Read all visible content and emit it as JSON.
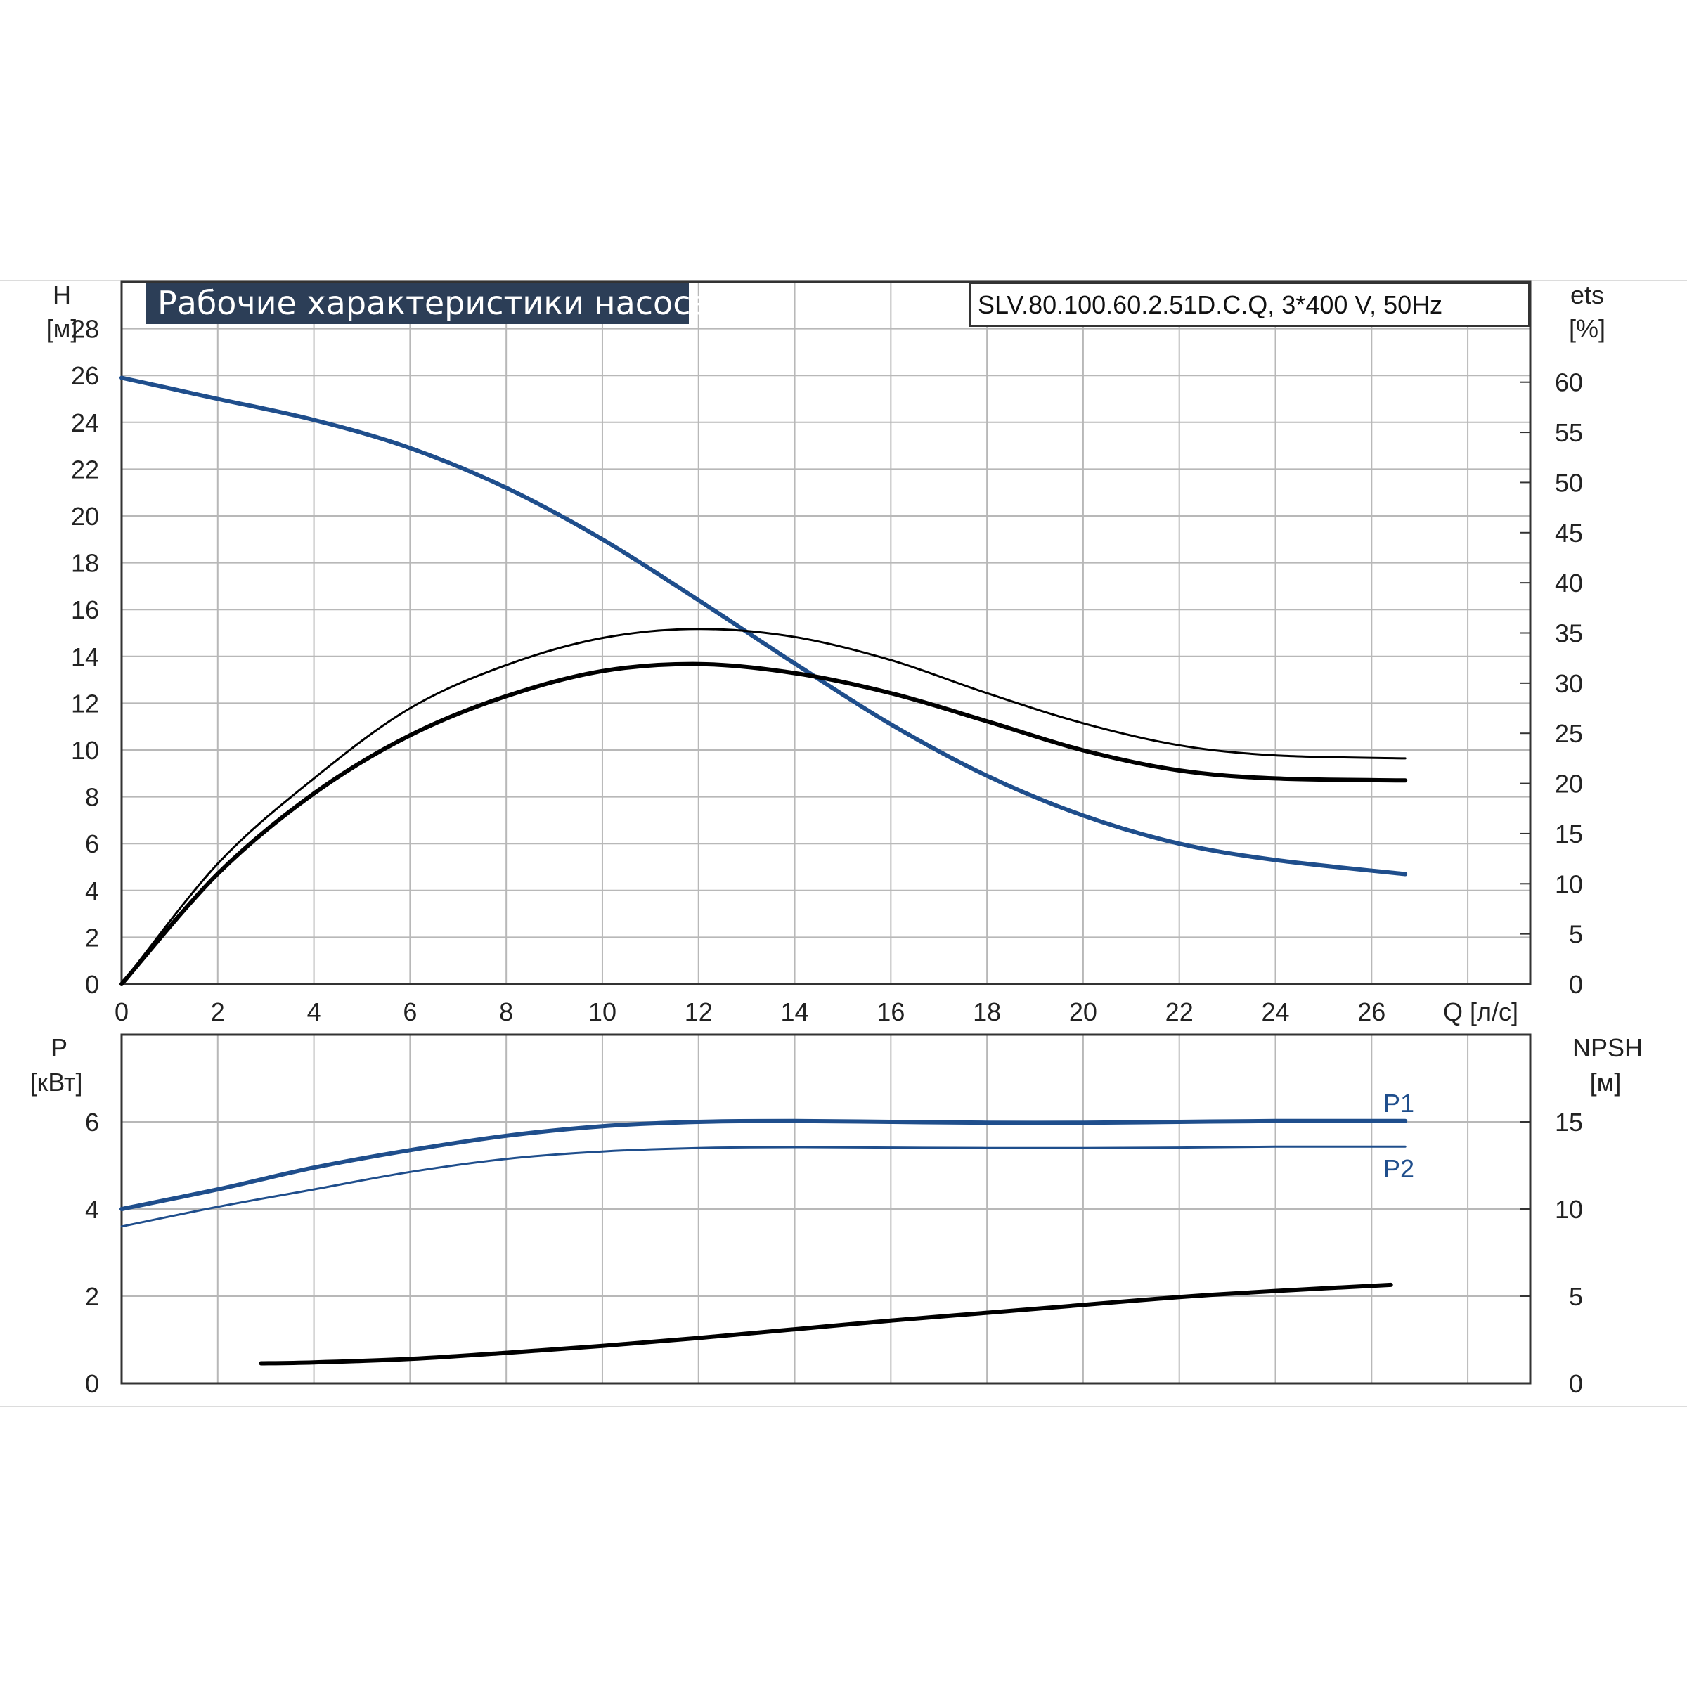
{
  "chart_data": [
    {
      "type": "line",
      "title": "Рабочие характеристики насоса",
      "model": "SLV.80.100.60.2.51D.C.Q, 3*400 V, 50Hz",
      "xlabel": "Q [л/с]",
      "ylabel": "H",
      "ylabel_unit": "[м]",
      "y2label": "ets",
      "y2label_unit": "[%]",
      "xlim": [
        0,
        29.3
      ],
      "ylim": [
        0,
        30
      ],
      "y2lim": [
        0,
        70
      ],
      "grid": true,
      "x_ticks": [
        "0",
        "2",
        "4",
        "6",
        "8",
        "10",
        "12",
        "14",
        "16",
        "18",
        "20",
        "22",
        "24",
        "26"
      ],
      "y_ticks": [
        "0",
        "2",
        "4",
        "6",
        "8",
        "10",
        "12",
        "14",
        "16",
        "18",
        "20",
        "22",
        "24",
        "26",
        "28"
      ],
      "y2_ticks": [
        "0",
        "5",
        "10",
        "15",
        "20",
        "25",
        "30",
        "35",
        "40",
        "45",
        "50",
        "55",
        "60"
      ],
      "series": [
        {
          "key": "head",
          "axis": "left",
          "color": "#1f4e8c",
          "x": [
            0,
            2,
            4,
            6,
            8,
            10,
            12,
            14,
            16,
            18,
            20,
            22,
            24,
            26.7
          ],
          "y": [
            25.9,
            25.0,
            24.1,
            22.9,
            21.2,
            19.0,
            16.4,
            13.7,
            11.1,
            8.9,
            7.2,
            6.0,
            5.3,
            4.7
          ]
        },
        {
          "key": "efficiency-upper",
          "axis": "right",
          "color": "#000000",
          "x": [
            0,
            2,
            4,
            6,
            8,
            10,
            12,
            14,
            16,
            18,
            20,
            22,
            24,
            26.7
          ],
          "y": [
            0,
            12.0,
            20.5,
            27.5,
            31.8,
            34.5,
            35.4,
            34.6,
            32.3,
            29.0,
            26.0,
            23.8,
            22.8,
            22.5
          ]
        },
        {
          "key": "efficiency-lower",
          "axis": "right",
          "color": "#000000",
          "x": [
            0,
            2,
            4,
            6,
            8,
            10,
            12,
            14,
            16,
            18,
            20,
            22,
            24,
            26.7
          ],
          "y": [
            0,
            11.0,
            19.0,
            24.8,
            28.7,
            31.2,
            31.9,
            31.0,
            29.0,
            26.2,
            23.3,
            21.3,
            20.5,
            20.3
          ]
        }
      ]
    },
    {
      "type": "line",
      "ylabel": "P",
      "ylabel_unit": "[кВт]",
      "y2label": "NPSH",
      "y2label_unit": "[м]",
      "xlim": [
        0,
        29.3
      ],
      "ylim": [
        0,
        8
      ],
      "y2lim": [
        0,
        20
      ],
      "grid": true,
      "y_ticks": [
        "0",
        "2",
        "4",
        "6"
      ],
      "y2_ticks": [
        "0",
        "5",
        "10",
        "15"
      ],
      "series": [
        {
          "key": "p1",
          "name": "P1",
          "axis": "left",
          "color": "#1f4e8c",
          "x": [
            0,
            2,
            4,
            6,
            8,
            10,
            12,
            14,
            16,
            18,
            20,
            22,
            24,
            26.7
          ],
          "y": [
            4.0,
            4.45,
            4.95,
            5.35,
            5.68,
            5.9,
            6.0,
            6.02,
            6.0,
            5.98,
            5.98,
            6.0,
            6.02,
            6.02
          ]
        },
        {
          "key": "p2",
          "name": "P2",
          "axis": "left",
          "color": "#1f4e8c",
          "x": [
            0,
            2,
            4,
            6,
            8,
            10,
            12,
            14,
            16,
            18,
            20,
            22,
            24,
            26.7
          ],
          "y": [
            3.6,
            4.05,
            4.45,
            4.85,
            5.15,
            5.32,
            5.4,
            5.42,
            5.41,
            5.4,
            5.4,
            5.41,
            5.43,
            5.43
          ]
        },
        {
          "key": "npsh",
          "axis": "right",
          "color": "#000000",
          "x": [
            2.9,
            4,
            6,
            8,
            10,
            12,
            14,
            16,
            18,
            20,
            22,
            24,
            26.4
          ],
          "y": [
            1.15,
            1.2,
            1.4,
            1.75,
            2.15,
            2.6,
            3.1,
            3.6,
            4.05,
            4.5,
            4.95,
            5.3,
            5.65
          ]
        }
      ]
    }
  ]
}
